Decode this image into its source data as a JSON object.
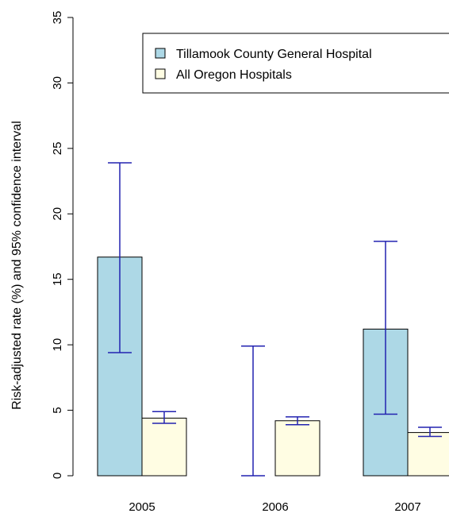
{
  "chart_data": {
    "type": "bar",
    "title": "",
    "xlabel": "",
    "ylabel": "Risk-adjusted rate (%) and 95% confidence interval",
    "ylim": [
      0,
      35
    ],
    "yticks": [
      0,
      5,
      10,
      15,
      20,
      25,
      30,
      35
    ],
    "grid": false,
    "legend_position": "top-right",
    "categories": [
      "2005",
      "2006",
      "2007"
    ],
    "series": [
      {
        "name": "Tillamook County General Hospital",
        "color": "#add8e6",
        "values": [
          16.7,
          0,
          11.2
        ],
        "ci_lower": [
          9.4,
          0,
          4.7
        ],
        "ci_upper": [
          23.9,
          9.9,
          17.9
        ]
      },
      {
        "name": "All Oregon Hospitals",
        "color": "#fffde3",
        "values": [
          4.4,
          4.2,
          3.3
        ],
        "ci_lower": [
          4.0,
          3.9,
          3.0
        ],
        "ci_upper": [
          4.9,
          4.5,
          3.7
        ]
      }
    ],
    "error_bar_color": "#2222b0"
  }
}
